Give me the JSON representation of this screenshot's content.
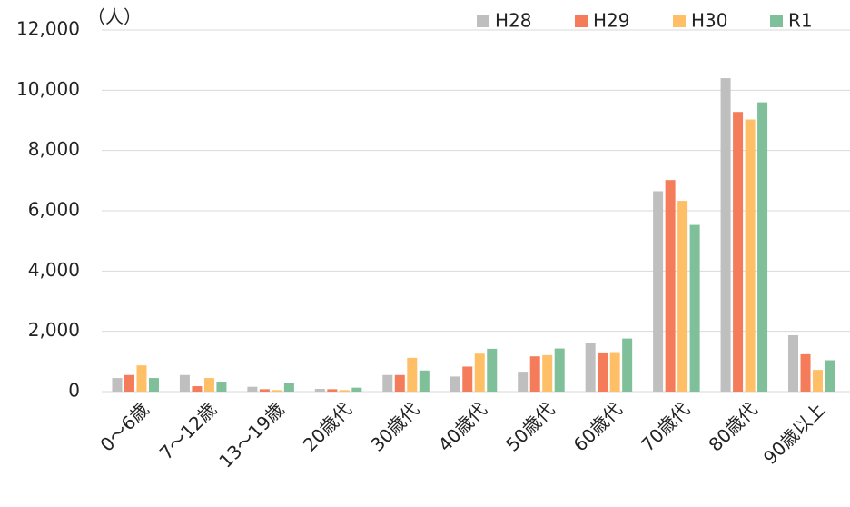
{
  "chart_data": {
    "type": "bar",
    "unit": "（人）",
    "categories": [
      "0～6歳",
      "7～12歳",
      "13～19歳",
      "20歳代",
      "30歳代",
      "40歳代",
      "50歳代",
      "60歳代",
      "70歳代",
      "80歳代",
      "90歳以上"
    ],
    "series": [
      {
        "name": "H28",
        "color": "#bfbfbf",
        "values": [
          450,
          550,
          160,
          90,
          550,
          500,
          660,
          1620,
          6650,
          10400,
          1870
        ]
      },
      {
        "name": "H29",
        "color": "#f57c5b",
        "values": [
          550,
          180,
          80,
          80,
          550,
          830,
          1170,
          1300,
          7020,
          9280,
          1240
        ]
      },
      {
        "name": "H30",
        "color": "#ffbf66",
        "values": [
          870,
          450,
          50,
          50,
          1120,
          1260,
          1210,
          1310,
          6330,
          9030,
          720
        ]
      },
      {
        "name": "R1",
        "color": "#7fbf99",
        "values": [
          450,
          330,
          280,
          130,
          700,
          1420,
          1430,
          1760,
          5530,
          9600,
          1040
        ]
      }
    ],
    "ylim": [
      0,
      12000
    ],
    "yticks": [
      0,
      {
        "value": 2000,
        "label": "2,000"
      },
      {
        "value": 4000,
        "label": "4,000"
      },
      {
        "value": 6000,
        "label": "6,000"
      },
      {
        "value": 8000,
        "label": "8,000"
      },
      {
        "value": 10000,
        "label": "10,000"
      },
      {
        "value": 12000,
        "label": "12,000"
      }
    ],
    "grid": true,
    "legend": "top-right"
  }
}
